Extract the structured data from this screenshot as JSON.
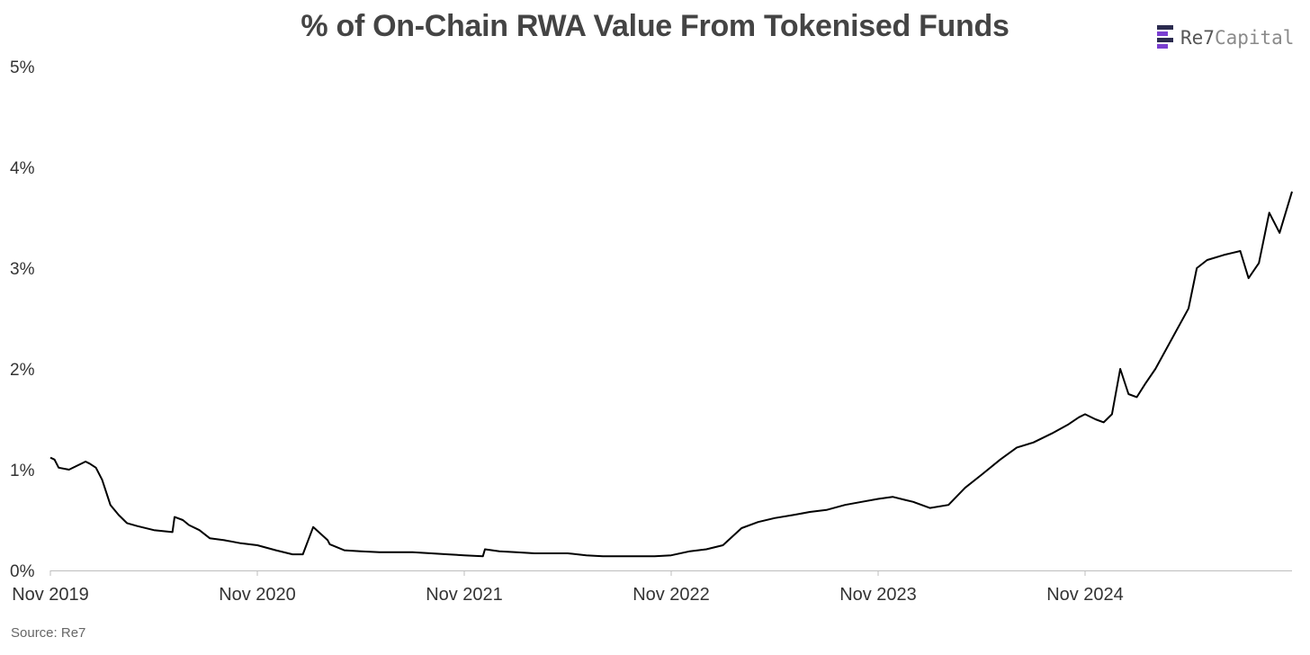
{
  "chart_data": {
    "type": "line",
    "title": "% of On-Chain RWA Value From Tokenised Funds",
    "xlabel": "",
    "ylabel": "",
    "x_ticks": [
      "Nov 2019",
      "Nov 2020",
      "Nov 2021",
      "Nov 2022",
      "Nov 2023",
      "Nov 2024"
    ],
    "y_ticks": [
      "0%",
      "1%",
      "2%",
      "3%",
      "4%",
      "5%"
    ],
    "ylim": [
      0,
      5
    ],
    "xlim": [
      2019.83,
      2025.83
    ],
    "grid": false,
    "line_color": "#000000",
    "series": [
      {
        "name": "% of On-Chain RWA Value From Tokenised Funds",
        "x": [
          2019.83,
          2019.85,
          2019.87,
          2019.92,
          2019.97,
          2020.0,
          2020.02,
          2020.05,
          2020.08,
          2020.12,
          2020.16,
          2020.2,
          2020.25,
          2020.33,
          2020.42,
          2020.43,
          2020.47,
          2020.5,
          2020.55,
          2020.6,
          2020.67,
          2020.75,
          2020.83,
          2020.92,
          2021.0,
          2021.05,
          2021.1,
          2021.17,
          2021.18,
          2021.25,
          2021.33,
          2021.42,
          2021.5,
          2021.58,
          2021.67,
          2021.75,
          2021.83,
          2021.92,
          2021.93,
          2022.0,
          2022.08,
          2022.17,
          2022.25,
          2022.33,
          2022.42,
          2022.5,
          2022.58,
          2022.67,
          2022.75,
          2022.83,
          2022.92,
          2023.0,
          2023.08,
          2023.17,
          2023.25,
          2023.33,
          2023.42,
          2023.5,
          2023.58,
          2023.67,
          2023.75,
          2023.83,
          2023.9,
          2023.96,
          2024.0,
          2024.08,
          2024.17,
          2024.25,
          2024.33,
          2024.42,
          2024.5,
          2024.58,
          2024.67,
          2024.75,
          2024.8,
          2024.83,
          2024.88,
          2024.92,
          2024.96,
          2025.0,
          2025.04,
          2025.08,
          2025.12,
          2025.17,
          2025.25,
          2025.33,
          2025.37,
          2025.42,
          2025.5,
          2025.54,
          2025.58,
          2025.62,
          2025.67,
          2025.72,
          2025.77,
          2025.83
        ],
        "values": [
          1.12,
          1.1,
          1.02,
          1.0,
          1.05,
          1.08,
          1.06,
          1.02,
          0.9,
          0.65,
          0.55,
          0.47,
          0.44,
          0.4,
          0.38,
          0.53,
          0.5,
          0.45,
          0.4,
          0.32,
          0.3,
          0.27,
          0.25,
          0.2,
          0.16,
          0.16,
          0.43,
          0.3,
          0.26,
          0.2,
          0.19,
          0.18,
          0.18,
          0.18,
          0.17,
          0.16,
          0.15,
          0.14,
          0.21,
          0.19,
          0.18,
          0.17,
          0.17,
          0.17,
          0.15,
          0.14,
          0.14,
          0.14,
          0.14,
          0.15,
          0.19,
          0.21,
          0.25,
          0.42,
          0.48,
          0.52,
          0.55,
          0.58,
          0.6,
          0.65,
          0.68,
          0.71,
          0.73,
          0.7,
          0.68,
          0.62,
          0.65,
          0.82,
          0.95,
          1.1,
          1.22,
          1.27,
          1.36,
          1.45,
          1.52,
          1.55,
          1.5,
          1.47,
          1.55,
          2.0,
          1.75,
          1.72,
          1.85,
          2.0,
          2.3,
          2.6,
          3.0,
          3.08,
          3.13,
          3.15,
          3.17,
          2.9,
          3.05,
          3.55,
          3.35,
          3.76
        ]
      }
    ],
    "source": "Source: Re7",
    "brand": {
      "name_part1": "Re7",
      "name_part2": "Capital",
      "mark_colors": [
        "#7a3fd1",
        "#2b2b4f"
      ]
    }
  }
}
